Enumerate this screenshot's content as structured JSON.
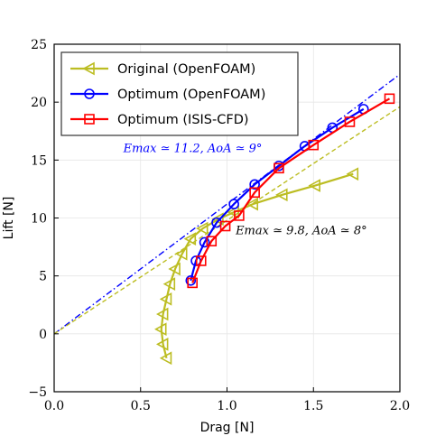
{
  "chart_data": {
    "type": "line",
    "title": "",
    "xlabel": "Drag [N]",
    "ylabel": "Lift [N]",
    "xlim": [
      0.0,
      2.0
    ],
    "ylim": [
      -5,
      25
    ],
    "x_ticks": [
      0.0,
      0.5,
      1.0,
      1.5,
      2.0
    ],
    "x_tick_labels": [
      "0.0",
      "0.5",
      "1.0",
      "1.5",
      "2.0"
    ],
    "y_ticks": [
      -5,
      0,
      5,
      10,
      15,
      20,
      25
    ],
    "y_tick_labels": [
      "−5",
      "0",
      "5",
      "10",
      "15",
      "20",
      "25"
    ],
    "grid": true,
    "legend_position": "top-left",
    "series": [
      {
        "name": "Original (OpenFOAM)",
        "color": "#bcbd22",
        "marker": "triangle-left",
        "x": [
          0.65,
          0.63,
          0.62,
          0.63,
          0.65,
          0.67,
          0.7,
          0.74,
          0.79,
          0.86,
          0.95,
          1.04,
          1.15,
          1.32,
          1.51,
          1.73
        ],
        "y": [
          -2.1,
          -0.9,
          0.4,
          1.7,
          3.0,
          4.3,
          5.6,
          6.9,
          8.2,
          9.1,
          9.9,
          10.5,
          11.2,
          12.0,
          12.8,
          13.8
        ]
      },
      {
        "name": "Optimum (OpenFOAM)",
        "color": "#0000ff",
        "marker": "circle",
        "x": [
          0.79,
          0.82,
          0.87,
          0.94,
          1.04,
          1.16,
          1.3,
          1.45,
          1.61,
          1.79
        ],
        "y": [
          4.6,
          6.3,
          7.9,
          9.6,
          11.2,
          12.9,
          14.5,
          16.2,
          17.8,
          19.4
        ]
      },
      {
        "name": "Optimum (ISIS-CFD)",
        "color": "#ff0000",
        "marker": "square",
        "x": [
          0.8,
          0.85,
          0.91,
          0.99,
          1.07,
          1.16,
          1.3,
          1.5,
          1.71,
          1.94
        ],
        "y": [
          4.4,
          6.3,
          8.0,
          9.3,
          10.2,
          12.2,
          14.3,
          16.3,
          18.3,
          20.3
        ]
      }
    ],
    "reference_lines": [
      {
        "slope": 11.2,
        "color": "#0000ff",
        "style": "dash-dot",
        "label": "Emax ≃ 11.2, AoA ≃ 9°",
        "label_x": 0.4,
        "label_y": 15.7
      },
      {
        "slope": 9.8,
        "color": "#bcbd22",
        "style": "dashed",
        "label": "Emax ≃ 9.8, AoA ≃ 8°",
        "label_x": 1.05,
        "label_y": 8.6
      }
    ]
  }
}
